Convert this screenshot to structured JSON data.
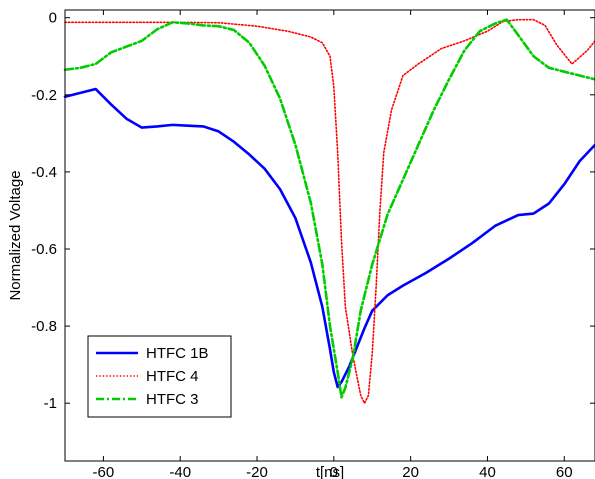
{
  "chart_data": {
    "type": "line",
    "title": "",
    "xlabel": "t[ns]",
    "ylabel": "Normalized Voltage",
    "xlim": [
      -70,
      68
    ],
    "ylim": [
      -1.15,
      0.02
    ],
    "x_ticks": [
      -60,
      -40,
      -20,
      0,
      20,
      40,
      60
    ],
    "y_ticks": [
      0,
      -0.2,
      -0.4,
      -0.6,
      -0.8,
      -1
    ],
    "x_tick_labels": [
      "-60",
      "-40",
      "-20",
      "0",
      "20",
      "40",
      "60"
    ],
    "y_tick_labels": [
      "0",
      "-0.2",
      "-0.4",
      "-0.6",
      "-0.8",
      "-1"
    ],
    "grid": false,
    "legend_position": "bottom-left",
    "series": [
      {
        "name": "HTFC 1B",
        "color": "#0000ff",
        "style": "solid",
        "points": [
          [
            -70,
            -0.205
          ],
          [
            -66,
            -0.195
          ],
          [
            -62,
            -0.185
          ],
          [
            -58,
            -0.225
          ],
          [
            -54,
            -0.262
          ],
          [
            -50,
            -0.285
          ],
          [
            -46,
            -0.282
          ],
          [
            -42,
            -0.278
          ],
          [
            -38,
            -0.28
          ],
          [
            -34,
            -0.282
          ],
          [
            -30,
            -0.295
          ],
          [
            -26,
            -0.322
          ],
          [
            -22,
            -0.355
          ],
          [
            -18,
            -0.392
          ],
          [
            -14,
            -0.445
          ],
          [
            -10,
            -0.52
          ],
          [
            -6,
            -0.635
          ],
          [
            -3,
            -0.75
          ],
          [
            -1,
            -0.86
          ],
          [
            0,
            -0.92
          ],
          [
            1,
            -0.958
          ],
          [
            2,
            -0.945
          ],
          [
            4,
            -0.905
          ],
          [
            6,
            -0.855
          ],
          [
            8,
            -0.805
          ],
          [
            10,
            -0.76
          ],
          [
            14,
            -0.72
          ],
          [
            18,
            -0.695
          ],
          [
            24,
            -0.662
          ],
          [
            30,
            -0.625
          ],
          [
            36,
            -0.585
          ],
          [
            42,
            -0.54
          ],
          [
            48,
            -0.512
          ],
          [
            52,
            -0.508
          ],
          [
            56,
            -0.482
          ],
          [
            60,
            -0.432
          ],
          [
            64,
            -0.372
          ],
          [
            68,
            -0.33
          ]
        ]
      },
      {
        "name": "HTFC 4",
        "color": "#ff0000",
        "style": "dotted",
        "points": [
          [
            -70,
            -0.012
          ],
          [
            -60,
            -0.012
          ],
          [
            -50,
            -0.012
          ],
          [
            -40,
            -0.012
          ],
          [
            -30,
            -0.013
          ],
          [
            -20,
            -0.022
          ],
          [
            -12,
            -0.035
          ],
          [
            -6,
            -0.05
          ],
          [
            -3,
            -0.065
          ],
          [
            -1,
            -0.1
          ],
          [
            0,
            -0.18
          ],
          [
            1,
            -0.35
          ],
          [
            2,
            -0.58
          ],
          [
            3,
            -0.75
          ],
          [
            5,
            -0.88
          ],
          [
            7,
            -0.98
          ],
          [
            8,
            -1.0
          ],
          [
            9,
            -0.98
          ],
          [
            10,
            -0.87
          ],
          [
            11,
            -0.7
          ],
          [
            12,
            -0.5
          ],
          [
            13,
            -0.35
          ],
          [
            15,
            -0.24
          ],
          [
            18,
            -0.15
          ],
          [
            22,
            -0.12
          ],
          [
            28,
            -0.08
          ],
          [
            34,
            -0.06
          ],
          [
            40,
            -0.035
          ],
          [
            44,
            -0.01
          ],
          [
            48,
            -0.005
          ],
          [
            52,
            -0.005
          ],
          [
            55,
            -0.02
          ],
          [
            58,
            -0.07
          ],
          [
            62,
            -0.12
          ],
          [
            66,
            -0.085
          ],
          [
            68,
            -0.06
          ]
        ]
      },
      {
        "name": "HTFC 3",
        "color": "#00cc00",
        "style": "dashdot",
        "points": [
          [
            -70,
            -0.135
          ],
          [
            -66,
            -0.13
          ],
          [
            -62,
            -0.12
          ],
          [
            -58,
            -0.09
          ],
          [
            -54,
            -0.075
          ],
          [
            -50,
            -0.06
          ],
          [
            -46,
            -0.03
          ],
          [
            -42,
            -0.012
          ],
          [
            -38,
            -0.015
          ],
          [
            -34,
            -0.02
          ],
          [
            -30,
            -0.022
          ],
          [
            -26,
            -0.032
          ],
          [
            -22,
            -0.065
          ],
          [
            -18,
            -0.125
          ],
          [
            -14,
            -0.21
          ],
          [
            -10,
            -0.33
          ],
          [
            -6,
            -0.48
          ],
          [
            -3,
            -0.64
          ],
          [
            -1,
            -0.8
          ],
          [
            1,
            -0.92
          ],
          [
            2,
            -0.985
          ],
          [
            3,
            -0.96
          ],
          [
            5,
            -0.88
          ],
          [
            7,
            -0.76
          ],
          [
            10,
            -0.64
          ],
          [
            14,
            -0.51
          ],
          [
            18,
            -0.42
          ],
          [
            22,
            -0.33
          ],
          [
            26,
            -0.24
          ],
          [
            30,
            -0.16
          ],
          [
            34,
            -0.085
          ],
          [
            38,
            -0.035
          ],
          [
            42,
            -0.015
          ],
          [
            45,
            -0.005
          ],
          [
            48,
            -0.045
          ],
          [
            52,
            -0.1
          ],
          [
            56,
            -0.13
          ],
          [
            60,
            -0.14
          ],
          [
            64,
            -0.15
          ],
          [
            68,
            -0.16
          ]
        ]
      }
    ]
  }
}
